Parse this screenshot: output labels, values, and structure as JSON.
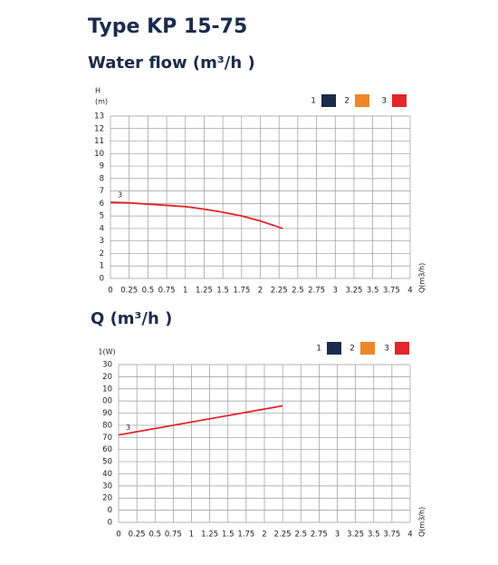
{
  "header": {
    "title": "Type KP 15-75"
  },
  "chart_data": [
    {
      "type": "line",
      "title": "Water flow (m³/h )",
      "ylabel": "H",
      "yunit": "(m)",
      "xlabel": "Q(m3/h)",
      "xlim": [
        0,
        4
      ],
      "xticks": [
        0,
        0.25,
        0.5,
        0.75,
        1,
        1.25,
        1.5,
        1.75,
        2,
        2.25,
        2.5,
        2.75,
        3,
        3.25,
        3.5,
        3.75,
        4
      ],
      "ylim": [
        0,
        13
      ],
      "yticks": [
        0,
        1,
        2,
        3,
        4,
        5,
        6,
        7,
        8,
        9,
        10,
        11,
        12,
        13
      ],
      "grid": true,
      "series": [
        {
          "name": "1",
          "color": "#1c2b4c"
        },
        {
          "name": "2",
          "color": "#f0862a"
        },
        {
          "name": "3",
          "color": "#e3262b",
          "x": [
            0,
            0.25,
            0.5,
            0.75,
            1,
            1.25,
            1.5,
            1.75,
            2,
            2.25,
            2.3
          ],
          "values": [
            6.1,
            6.05,
            5.95,
            5.85,
            5.75,
            5.55,
            5.3,
            5.0,
            4.6,
            4.1,
            4.0
          ]
        }
      ]
    },
    {
      "type": "line",
      "title": "Q (m³/h )",
      "ylabel": "1(W)",
      "xlabel": "Q(m3/h)",
      "xlim": [
        0,
        4
      ],
      "xticks": [
        0,
        0.25,
        0.5,
        0.75,
        1,
        1.25,
        1.5,
        1.75,
        2,
        2.25,
        2.5,
        2.75,
        3,
        3.25,
        3.5,
        3.75,
        4
      ],
      "ylim": [
        0,
        130
      ],
      "yticks": [
        0,
        {
          "value": 10,
          "label": "0"
        },
        20,
        30,
        40,
        50,
        60,
        70,
        80,
        90,
        {
          "value": 100,
          "label": "00"
        },
        {
          "value": 110,
          "label": "10"
        },
        {
          "value": 120,
          "label": "20"
        },
        {
          "value": 130,
          "label": "30"
        }
      ],
      "grid": true,
      "series": [
        {
          "name": "1",
          "color": "#1c2b4c"
        },
        {
          "name": "2",
          "color": "#f0862a"
        },
        {
          "name": "3",
          "color": "#e3262b",
          "x": [
            0,
            2.25
          ],
          "values": [
            72,
            96
          ]
        }
      ]
    }
  ]
}
